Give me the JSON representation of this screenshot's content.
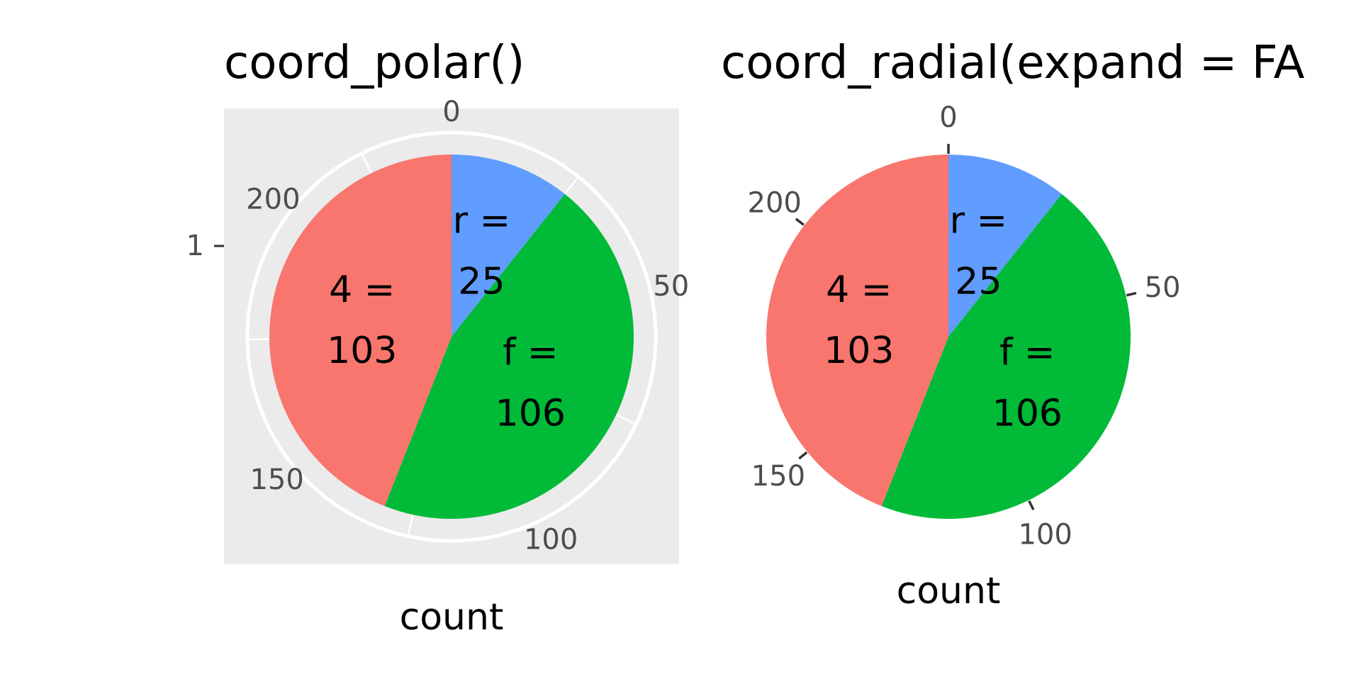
{
  "chart_data": [
    {
      "type": "pie",
      "coord": "polar",
      "title": "coord_polar()",
      "xlabel": "count",
      "ylabel": "",
      "y_ticks": [
        "1"
      ],
      "theta_range": [
        0,
        234
      ],
      "theta_ticks": [
        0,
        50,
        100,
        150,
        200
      ],
      "panel_background": "grey",
      "grid": true,
      "slices": [
        {
          "category": "r",
          "value": 25,
          "label": "r =\n25",
          "color": "#619cff"
        },
        {
          "category": "f",
          "value": 106,
          "label": "f =\n106",
          "color": "#00ba38"
        },
        {
          "category": "4",
          "value": 103,
          "label": "4 =\n103",
          "color": "#f8766d"
        }
      ]
    },
    {
      "type": "pie",
      "coord": "radial",
      "title": "coord_radial(expand = FA",
      "xlabel": "count",
      "ylabel": "",
      "theta_range": [
        0,
        234
      ],
      "theta_ticks": [
        0,
        50,
        100,
        150,
        200
      ],
      "panel_background": "none",
      "grid": false,
      "slices": [
        {
          "category": "r",
          "value": 25,
          "label": "r =\n25",
          "color": "#619cff"
        },
        {
          "category": "f",
          "value": 106,
          "label": "f =\n106",
          "color": "#00ba38"
        },
        {
          "category": "4",
          "value": 103,
          "label": "4 =\n103",
          "color": "#f8766d"
        }
      ]
    }
  ]
}
